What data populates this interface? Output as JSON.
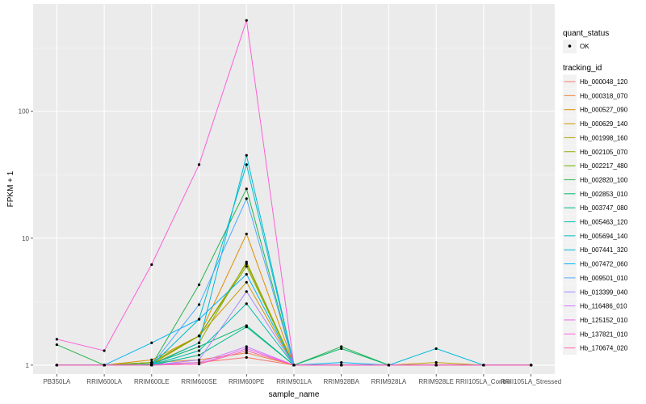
{
  "chart_data": {
    "type": "line",
    "xlabel": "sample_name",
    "ylabel": "FPKM + 1",
    "yscale": "log10",
    "ylim": [
      0.85,
      700
    ],
    "ytick_values": [
      1,
      10,
      100
    ],
    "ytick_labels": [
      "1",
      "10",
      "100"
    ],
    "categories": [
      "PB350LA",
      "RRIM600LA",
      "RRIM600LE",
      "RRIM600SE",
      "RRIM600PE",
      "RRIM901LA",
      "RRIM928BA",
      "RRIM928LA",
      "RRIM928LE",
      "RRII105LA_Control",
      "RRII105LA_Stressed"
    ],
    "grid": true,
    "legend_position": "right",
    "legend_quant": {
      "title": "quant_status",
      "entries": [
        "OK"
      ]
    },
    "legend_tracking_title": "tracking_id",
    "series": [
      {
        "name": "Hb_000048_120",
        "color": "#F8766D",
        "values": [
          1.0,
          1.0,
          1.02,
          1.05,
          1.15,
          1.0,
          1.0,
          1.0,
          1.0,
          1.0,
          1.0
        ]
      },
      {
        "name": "Hb_000318_070",
        "color": "#EC823C",
        "values": [
          1.0,
          1.0,
          1.05,
          1.1,
          1.25,
          1.0,
          1.0,
          1.0,
          1.0,
          1.0,
          1.0
        ]
      },
      {
        "name": "Hb_000527_090",
        "color": "#DD8D00",
        "values": [
          1.0,
          1.0,
          1.1,
          1.7,
          10.8,
          1.0,
          1.0,
          1.0,
          1.0,
          1.0,
          1.0
        ]
      },
      {
        "name": "Hb_000629_140",
        "color": "#CA9700",
        "values": [
          1.0,
          1.0,
          1.05,
          1.7,
          4.5,
          1.0,
          1.0,
          1.0,
          1.05,
          1.0,
          1.0
        ]
      },
      {
        "name": "Hb_001998_160",
        "color": "#B3A000",
        "values": [
          1.0,
          1.0,
          1.02,
          1.7,
          6.3,
          1.0,
          1.0,
          1.0,
          1.0,
          1.0,
          1.0
        ]
      },
      {
        "name": "Hb_002105_070",
        "color": "#96A900",
        "values": [
          1.0,
          1.0,
          1.02,
          1.5,
          6.5,
          1.0,
          1.0,
          1.0,
          1.0,
          1.0,
          1.0
        ]
      },
      {
        "name": "Hb_002217_480",
        "color": "#71B000",
        "values": [
          1.0,
          1.0,
          1.05,
          1.7,
          6.0,
          1.0,
          1.0,
          1.0,
          1.0,
          1.0,
          1.0
        ]
      },
      {
        "name": "Hb_002820_100",
        "color": "#2AB34B",
        "values": [
          1.45,
          1.0,
          1.0,
          4.3,
          24.5,
          1.0,
          1.4,
          1.0,
          1.0,
          1.0,
          1.0
        ]
      },
      {
        "name": "Hb_002853_010",
        "color": "#00B76F",
        "values": [
          1.0,
          1.0,
          1.02,
          1.4,
          2.05,
          1.0,
          1.35,
          1.0,
          1.0,
          1.0,
          1.0
        ]
      },
      {
        "name": "Hb_003747_080",
        "color": "#00BA8E",
        "values": [
          1.0,
          1.0,
          1.0,
          1.2,
          2.0,
          1.0,
          1.0,
          1.0,
          1.0,
          1.0,
          1.0
        ]
      },
      {
        "name": "Hb_005463_120",
        "color": "#00BCA9",
        "values": [
          1.0,
          1.0,
          1.0,
          1.3,
          3.05,
          1.0,
          1.0,
          1.0,
          1.0,
          1.0,
          1.0
        ]
      },
      {
        "name": "Hb_005694_140",
        "color": "#00BCC3",
        "values": [
          1.0,
          1.0,
          1.0,
          2.3,
          38.0,
          1.0,
          1.0,
          1.0,
          1.0,
          1.0,
          1.0
        ]
      },
      {
        "name": "Hb_007441_320",
        "color": "#00BADA",
        "values": [
          1.0,
          1.0,
          1.0,
          1.5,
          45.0,
          1.0,
          1.0,
          1.0,
          1.35,
          1.0,
          1.0
        ]
      },
      {
        "name": "Hb_007472_060",
        "color": "#00B2F3",
        "values": [
          1.0,
          1.0,
          1.5,
          2.3,
          5.2,
          1.0,
          1.05,
          1.0,
          1.0,
          1.0,
          1.0
        ]
      },
      {
        "name": "Hb_009501_010",
        "color": "#4DA9FF",
        "values": [
          1.0,
          1.0,
          1.0,
          3.0,
          20.5,
          1.0,
          1.0,
          1.0,
          1.0,
          1.0,
          1.0
        ]
      },
      {
        "name": "Hb_013399_040",
        "color": "#A58AFF",
        "values": [
          1.0,
          1.0,
          1.0,
          1.1,
          3.8,
          1.0,
          1.0,
          1.0,
          1.0,
          1.0,
          1.0
        ]
      },
      {
        "name": "Hb_116486_010",
        "color": "#D078FF",
        "values": [
          1.0,
          1.0,
          1.0,
          1.05,
          1.4,
          1.0,
          1.0,
          1.0,
          1.0,
          1.0,
          1.0
        ]
      },
      {
        "name": "Hb_125152_010",
        "color": "#ED68ED",
        "values": [
          1.0,
          1.0,
          1.0,
          1.02,
          1.35,
          1.0,
          1.0,
          1.0,
          1.0,
          1.0,
          1.0
        ]
      },
      {
        "name": "Hb_137821_010",
        "color": "#FB61D7",
        "values": [
          1.6,
          1.3,
          6.2,
          38.0,
          520.0,
          1.0,
          1.0,
          1.0,
          1.0,
          1.0,
          1.0
        ]
      },
      {
        "name": "Hb_170674_020",
        "color": "#FF66A8",
        "values": [
          1.0,
          1.0,
          1.0,
          1.02,
          1.3,
          1.0,
          1.0,
          1.0,
          1.0,
          1.0,
          1.0
        ]
      }
    ]
  }
}
